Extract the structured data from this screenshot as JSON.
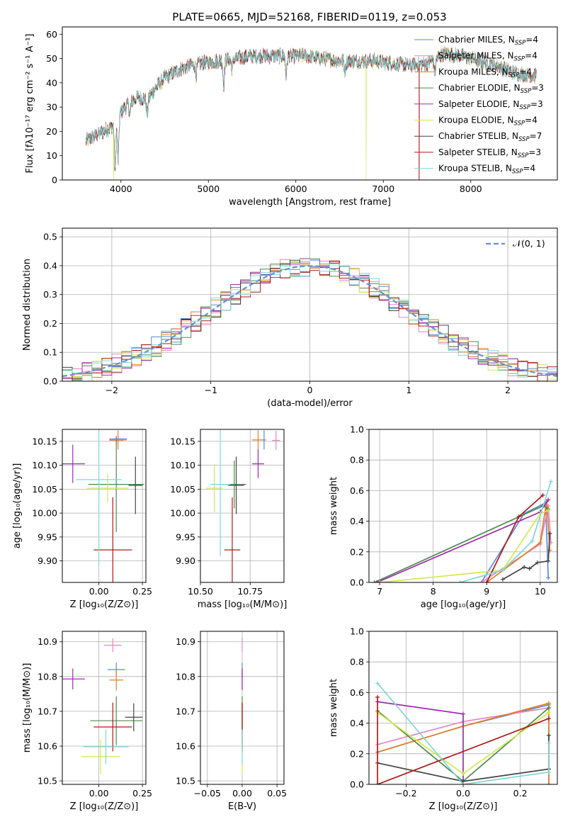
{
  "figure": {
    "title": "PLATE=0665, MJD=52168, FIBERID=0119, z=0.053"
  },
  "colors": {
    "Chabrier MILES": "#5a8ad6",
    "Salpeter MILES": "#e586c4",
    "Kroupa MILES": "#e67f1f",
    "Chabrier ELODIE": "#4d8a4d",
    "Salpeter ELODIE": "#9f2bb0",
    "Kroupa ELODIE": "#d4e84d",
    "Chabrier STELIB": "#444444",
    "Salpeter STELIB": "#b01818",
    "Kroupa STELIB": "#7fd8d8"
  },
  "chart_data": [
    {
      "id": "spectrum",
      "type": "line",
      "xlabel": "wavelength [Angstrom, rest frame]",
      "ylabel": "Flux [fλ10⁻¹⁷ erg cm⁻² s⁻¹ A⁻¹]",
      "xlim": [
        3330,
        8990
      ],
      "ylim": [
        0,
        63
      ],
      "xticks": [
        4000,
        5000,
        6000,
        7000,
        8000
      ],
      "yticks": [
        0,
        10,
        20,
        30,
        40,
        50,
        60
      ],
      "grid": false,
      "legend": "right",
      "legend_entries": [
        "Chabrier MILES, N_SSP=4",
        "Salpeter MILES, N_SSP=4",
        "Kroupa MILES, N_SSP=4",
        "Chabrier ELODIE, N_SSP=3",
        "Salpeter ELODIE, N_SSP=3",
        "Kroupa ELODIE, N_SSP=4",
        "Chabrier STELIB, N_SSP=7",
        "Salpeter STELIB, N_SSP=3",
        "Kroupa STELIB, N_SSP=4"
      ],
      "continuum": [
        [
          3600,
          16
        ],
        [
          3700,
          18
        ],
        [
          3800,
          20
        ],
        [
          3900,
          22
        ],
        [
          4000,
          28
        ],
        [
          4100,
          32
        ],
        [
          4200,
          34
        ],
        [
          4300,
          33
        ],
        [
          4400,
          38
        ],
        [
          4500,
          42
        ],
        [
          4700,
          46
        ],
        [
          4900,
          48
        ],
        [
          5100,
          49
        ],
        [
          5300,
          50
        ],
        [
          5500,
          51
        ],
        [
          5700,
          51
        ],
        [
          5900,
          51
        ],
        [
          6100,
          51
        ],
        [
          6300,
          50
        ],
        [
          6500,
          49
        ],
        [
          6700,
          49
        ],
        [
          6900,
          49
        ],
        [
          7100,
          48
        ],
        [
          7300,
          47
        ],
        [
          7500,
          48
        ],
        [
          7700,
          52
        ],
        [
          7900,
          51
        ],
        [
          8100,
          49
        ],
        [
          8300,
          47
        ],
        [
          8500,
          44
        ],
        [
          8700,
          43
        ]
      ],
      "absorption": [
        [
          3934,
          -20
        ],
        [
          3968,
          -18
        ],
        [
          4102,
          -5
        ],
        [
          4300,
          -6
        ],
        [
          4861,
          -4
        ],
        [
          5175,
          -10
        ],
        [
          5270,
          -4
        ],
        [
          5890,
          -8
        ],
        [
          6563,
          -4
        ],
        [
          7590,
          -6
        ]
      ],
      "dropouts": [
        {
          "x": 3915,
          "series": "Kroupa ELODIE"
        },
        {
          "x": 6805,
          "series": "Kroupa ELODIE"
        },
        {
          "x": 7410,
          "series": "Salpeter STELIB"
        }
      ]
    },
    {
      "id": "residuals",
      "type": "step",
      "xlabel": "(data-model)/error",
      "ylabel": "Normed distribution",
      "xlim": [
        -2.5,
        2.5
      ],
      "ylim": [
        0,
        0.53
      ],
      "xticks": [
        -2,
        -1,
        0,
        1,
        2
      ],
      "yticks": [
        0.0,
        0.1,
        0.2,
        0.3,
        0.4,
        0.5
      ],
      "grid": true,
      "legend": "top-right",
      "gaussian_label": "𝒩(0, 1)"
    },
    {
      "id": "z_age",
      "type": "errorbar",
      "xlabel": "Z [log₁₀(Z/Z⊙)]",
      "ylabel": "age  [log₁₀(age/yr)]",
      "xlim": [
        -0.21,
        0.27
      ],
      "ylim": [
        9.855,
        10.175
      ],
      "xticks": [
        0.0,
        0.25
      ],
      "yticks": [
        9.9,
        9.95,
        10.0,
        10.05,
        10.1,
        10.15
      ],
      "points": [
        {
          "series": "Chabrier MILES",
          "x": 0.11,
          "y": 10.155,
          "xerr": 0.05,
          "yerr": 0.005
        },
        {
          "series": "Salpeter MILES",
          "x": 0.1,
          "y": 10.152,
          "xerr": 0.04,
          "yerr": 0.01
        },
        {
          "series": "Kroupa MILES",
          "x": 0.11,
          "y": 10.153,
          "xerr": 0.05,
          "yerr": 0.02
        },
        {
          "series": "Chabrier ELODIE",
          "x": 0.1,
          "y": 10.06,
          "xerr": 0.16,
          "yerr": 0.1
        },
        {
          "series": "Salpeter ELODIE",
          "x": -0.15,
          "y": 10.103,
          "xerr": 0.07,
          "yerr": 0.04
        },
        {
          "series": "Kroupa ELODIE",
          "x": 0.05,
          "y": 10.052,
          "xerr": 0.12,
          "yerr": 0.03
        },
        {
          "series": "Chabrier STELIB",
          "x": 0.21,
          "y": 10.058,
          "xerr": 0.04,
          "yerr": 0.06
        },
        {
          "series": "Salpeter STELIB",
          "x": 0.08,
          "y": 9.923,
          "xerr": 0.11,
          "yerr": 0.11
        },
        {
          "series": "Kroupa STELIB",
          "x": 0.0,
          "y": 10.07,
          "xerr": 0.13,
          "yerr": 0.18
        }
      ]
    },
    {
      "id": "mass_age",
      "type": "errorbar",
      "xlabel": "mass [log₁₀(M/M⊙)]",
      "ylabel": "",
      "xlim": [
        10.5,
        10.92
      ],
      "ylim": [
        9.855,
        10.175
      ],
      "xticks": [
        10.5,
        10.75
      ],
      "yticks": [
        9.9,
        9.95,
        10.0,
        10.05,
        10.1,
        10.15
      ],
      "points": [
        {
          "series": "Chabrier MILES",
          "x": 10.82,
          "y": 10.153,
          "xerr": 0.01,
          "yerr": 0.02
        },
        {
          "series": "Salpeter MILES",
          "x": 10.88,
          "y": 10.152,
          "xerr": 0.02,
          "yerr": 0.02
        },
        {
          "series": "Kroupa MILES",
          "x": 10.79,
          "y": 10.153,
          "xerr": 0.03,
          "yerr": 0.02
        },
        {
          "series": "Chabrier ELODIE",
          "x": 10.67,
          "y": 10.06,
          "xerr": 0.06,
          "yerr": 0.05
        },
        {
          "series": "Salpeter ELODIE",
          "x": 10.79,
          "y": 10.103,
          "xerr": 0.03,
          "yerr": 0.03
        },
        {
          "series": "Kroupa ELODIE",
          "x": 10.57,
          "y": 10.052,
          "xerr": 0.04,
          "yerr": 0.05
        },
        {
          "series": "Chabrier STELIB",
          "x": 10.68,
          "y": 10.058,
          "xerr": 0.04,
          "yerr": 0.06
        },
        {
          "series": "Salpeter STELIB",
          "x": 10.66,
          "y": 9.923,
          "xerr": 0.04,
          "yerr": 0.11
        },
        {
          "series": "Kroupa STELIB",
          "x": 10.6,
          "y": 10.06,
          "xerr": 0.05,
          "yerr": 0.15
        }
      ]
    },
    {
      "id": "age_weight",
      "type": "line",
      "xlabel": "age  [log₁₀(age/yr)]",
      "ylabel": "mass weight",
      "xlim": [
        6.8,
        10.32
      ],
      "ylim": [
        0.0,
        1.0
      ],
      "xticks": [
        7,
        8,
        9,
        10
      ],
      "yticks": [
        0.0,
        0.2,
        0.4,
        0.6,
        0.8,
        1.0
      ],
      "grid": true,
      "series": [
        {
          "name": "Chabrier MILES",
          "points": [
            [
              8.9,
              0.0
            ],
            [
              9.7,
              0.45
            ],
            [
              10.1,
              0.52
            ],
            [
              10.15,
              0.03
            ]
          ]
        },
        {
          "name": "Salpeter MILES",
          "points": [
            [
              8.9,
              0.0
            ],
            [
              10.0,
              0.25
            ],
            [
              10.15,
              0.5
            ],
            [
              10.2,
              0.26
            ]
          ]
        },
        {
          "name": "Kroupa MILES",
          "points": [
            [
              9.0,
              0.0
            ],
            [
              10.0,
              0.26
            ],
            [
              10.12,
              0.53
            ],
            [
              10.18,
              0.21
            ]
          ]
        },
        {
          "name": "Chabrier ELODIE",
          "points": [
            [
              6.9,
              0.0
            ],
            [
              10.05,
              0.5
            ],
            [
              10.15,
              0.48
            ]
          ]
        },
        {
          "name": "Salpeter ELODIE",
          "points": [
            [
              6.95,
              0.0
            ],
            [
              10.0,
              0.46
            ],
            [
              10.15,
              0.54
            ]
          ]
        },
        {
          "name": "Kroupa ELODIE",
          "points": [
            [
              7.0,
              0.0
            ],
            [
              9.3,
              0.08
            ],
            [
              10.0,
              0.45
            ],
            [
              10.15,
              0.47
            ]
          ]
        },
        {
          "name": "Chabrier STELIB",
          "points": [
            [
              9.3,
              0.02
            ],
            [
              9.7,
              0.1
            ],
            [
              9.8,
              0.09
            ],
            [
              9.95,
              0.13
            ],
            [
              10.15,
              0.14
            ],
            [
              10.18,
              0.32
            ]
          ]
        },
        {
          "name": "Salpeter STELIB",
          "points": [
            [
              9.0,
              0.0
            ],
            [
              9.6,
              0.43
            ],
            [
              10.05,
              0.57
            ]
          ]
        },
        {
          "name": "Kroupa STELIB",
          "points": [
            [
              8.5,
              0.0
            ],
            [
              9.3,
              0.08
            ],
            [
              9.85,
              0.27
            ],
            [
              10.2,
              0.66
            ]
          ]
        }
      ]
    },
    {
      "id": "z_mass",
      "type": "errorbar",
      "xlabel": "Z [log₁₀(Z/Z⊙)]",
      "ylabel": "mass [log₁₀(M/M⊙)]",
      "xlim": [
        -0.21,
        0.27
      ],
      "ylim": [
        10.49,
        10.93
      ],
      "xticks": [
        0.0,
        0.25
      ],
      "yticks": [
        10.5,
        10.6,
        10.7,
        10.8,
        10.9
      ],
      "points": [
        {
          "series": "Chabrier MILES",
          "x": 0.1,
          "y": 10.82,
          "xerr": 0.05,
          "yerr": 0.02
        },
        {
          "series": "Salpeter MILES",
          "x": 0.08,
          "y": 10.89,
          "xerr": 0.05,
          "yerr": 0.02
        },
        {
          "series": "Kroupa MILES",
          "x": 0.1,
          "y": 10.79,
          "xerr": 0.04,
          "yerr": 0.03
        },
        {
          "series": "Chabrier ELODIE",
          "x": 0.1,
          "y": 10.673,
          "xerr": 0.15,
          "yerr": 0.07
        },
        {
          "series": "Salpeter ELODIE",
          "x": -0.15,
          "y": 10.793,
          "xerr": 0.07,
          "yerr": 0.03
        },
        {
          "series": "Kroupa ELODIE",
          "x": 0.01,
          "y": 10.57,
          "xerr": 0.11,
          "yerr": 0.05
        },
        {
          "series": "Chabrier STELIB",
          "x": 0.2,
          "y": 10.683,
          "xerr": 0.05,
          "yerr": 0.04
        },
        {
          "series": "Salpeter STELIB",
          "x": 0.08,
          "y": 10.655,
          "xerr": 0.11,
          "yerr": 0.07
        },
        {
          "series": "Kroupa STELIB",
          "x": 0.04,
          "y": 10.598,
          "xerr": 0.13,
          "yerr": 0.05
        }
      ]
    },
    {
      "id": "ebv_mass",
      "type": "errorbar",
      "xlabel": "E(B-V)",
      "ylabel": "",
      "xlim": [
        -0.06,
        0.06
      ],
      "ylim": [
        10.49,
        10.93
      ],
      "xticks": [
        -0.05,
        0.0,
        0.05
      ],
      "yticks": [
        10.5,
        10.6,
        10.7,
        10.8,
        10.9
      ],
      "points": [
        {
          "series": "Chabrier MILES",
          "x": 0.0,
          "y": 10.82,
          "xerr": 0.0,
          "yerr": 0.02
        },
        {
          "series": "Salpeter MILES",
          "x": 0.0,
          "y": 10.89,
          "xerr": 0.0,
          "yerr": 0.02
        },
        {
          "series": "Kroupa MILES",
          "x": 0.0,
          "y": 10.79,
          "xerr": 0.0,
          "yerr": 0.03
        },
        {
          "series": "Chabrier ELODIE",
          "x": 0.0,
          "y": 10.673,
          "xerr": 0.0,
          "yerr": 0.07
        },
        {
          "series": "Salpeter ELODIE",
          "x": 0.0,
          "y": 10.793,
          "xerr": 0.0,
          "yerr": 0.03
        },
        {
          "series": "Kroupa ELODIE",
          "x": 0.0,
          "y": 10.57,
          "xerr": 0.0,
          "yerr": 0.05
        },
        {
          "series": "Chabrier STELIB",
          "x": 0.0,
          "y": 10.683,
          "xerr": 0.0,
          "yerr": 0.04
        },
        {
          "series": "Salpeter STELIB",
          "x": 0.0,
          "y": 10.655,
          "xerr": 0.0,
          "yerr": 0.07
        },
        {
          "series": "Kroupa STELIB",
          "x": 0.0,
          "y": 10.598,
          "xerr": 0.0,
          "yerr": 0.05
        }
      ]
    },
    {
      "id": "z_weight",
      "type": "line",
      "xlabel": "Z [log₁₀(Z/Z⊙)]",
      "ylabel": "mass weight",
      "xlim": [
        -0.33,
        0.33
      ],
      "ylim": [
        0.0,
        1.0
      ],
      "xticks": [
        -0.2,
        0.0,
        0.2
      ],
      "yticks": [
        0.0,
        0.2,
        0.4,
        0.6,
        0.8,
        1.0
      ],
      "grid": true,
      "series": [
        {
          "name": "Chabrier MILES",
          "points": [
            [
              -0.3,
              0.21
            ],
            [
              0.0,
              0.38
            ],
            [
              0.3,
              0.52
            ],
            [
              0.3,
              0.0
            ]
          ]
        },
        {
          "name": "Salpeter MILES",
          "points": [
            [
              -0.3,
              0.26
            ],
            [
              0.0,
              0.41
            ],
            [
              0.3,
              0.5
            ],
            [
              0.3,
              0.0
            ]
          ]
        },
        {
          "name": "Kroupa MILES",
          "points": [
            [
              -0.3,
              0.21
            ],
            [
              0.0,
              0.38
            ],
            [
              0.3,
              0.53
            ],
            [
              0.3,
              0.0
            ]
          ]
        },
        {
          "name": "Chabrier ELODIE",
          "points": [
            [
              -0.3,
              0.48
            ],
            [
              0.0,
              0.02
            ],
            [
              0.3,
              0.5
            ]
          ]
        },
        {
          "name": "Salpeter ELODIE",
          "points": [
            [
              -0.3,
              0.54
            ],
            [
              0.0,
              0.46
            ],
            [
              0.0,
              0.0
            ]
          ]
        },
        {
          "name": "Kroupa ELODIE",
          "points": [
            [
              -0.3,
              0.47
            ],
            [
              0.0,
              0.07
            ],
            [
              0.3,
              0.47
            ]
          ]
        },
        {
          "name": "Chabrier STELIB",
          "points": [
            [
              -0.3,
              0.14
            ],
            [
              0.0,
              0.02
            ],
            [
              0.3,
              0.1
            ],
            [
              0.3,
              0.32
            ]
          ]
        },
        {
          "name": "Salpeter STELIB",
          "points": [
            [
              -0.3,
              0.57
            ],
            [
              -0.3,
              0.0
            ],
            [
              0.3,
              0.43
            ]
          ]
        },
        {
          "name": "Kroupa STELIB",
          "points": [
            [
              -0.3,
              0.66
            ],
            [
              0.0,
              0.0
            ],
            [
              0.3,
              0.08
            ],
            [
              0.3,
              0.27
            ]
          ]
        }
      ]
    }
  ]
}
